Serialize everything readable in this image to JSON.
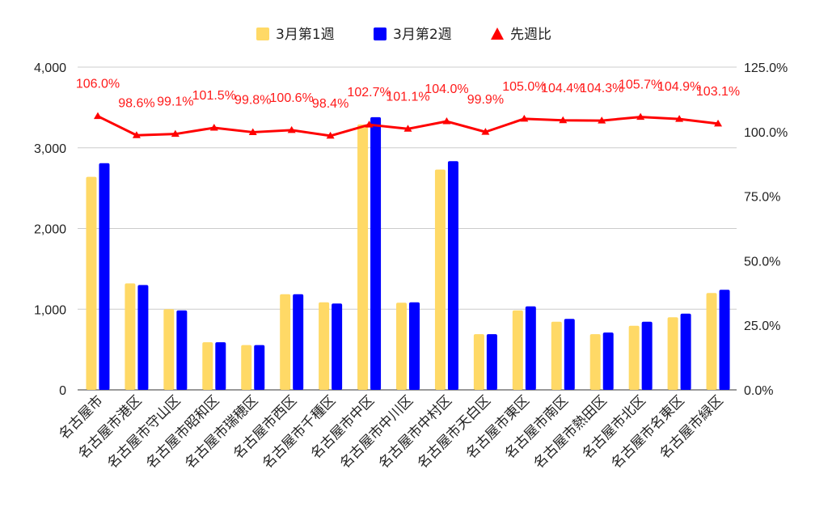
{
  "chart_data": {
    "type": "bar",
    "categories": [
      "名古屋市",
      "名古屋市港区",
      "名古屋市守山区",
      "名古屋市昭和区",
      "名古屋市瑞穂区",
      "名古屋市西区",
      "名古屋市千種区",
      "名古屋市中区",
      "名古屋市中川区",
      "名古屋市中村区",
      "名古屋市天白区",
      "名古屋市東区",
      "名古屋市南区",
      "名古屋市熱田区",
      "名古屋市北区",
      "名古屋市名東区",
      "名古屋市緑区"
    ],
    "series": [
      {
        "name": "3月第1週",
        "kind": "bar",
        "axis": "left",
        "color": "#ffd966",
        "values": [
          2640,
          1320,
          1000,
          590,
          555,
          1185,
          1085,
          3290,
          1080,
          2730,
          690,
          985,
          845,
          690,
          795,
          900,
          1200
        ]
      },
      {
        "name": "3月第2週",
        "kind": "bar",
        "axis": "left",
        "color": "#0000ff",
        "values": [
          2810,
          1300,
          985,
          590,
          555,
          1185,
          1070,
          3380,
          1085,
          2835,
          690,
          1035,
          880,
          710,
          845,
          945,
          1240
        ]
      },
      {
        "name": "先週比",
        "kind": "line",
        "axis": "right",
        "color": "#ff0000",
        "marker": "triangle",
        "values": [
          106.0,
          98.6,
          99.1,
          101.5,
          99.8,
          100.6,
          98.4,
          102.7,
          101.1,
          104.0,
          99.9,
          105.0,
          104.4,
          104.3,
          105.7,
          104.9,
          103.1
        ],
        "labels": [
          "106.0%",
          "98.6%",
          "99.1%",
          "101.5%",
          "99.8%",
          "100.6%",
          "98.4%",
          "102.7%",
          "101.1%",
          "104.0%",
          "99.9%",
          "105.0%",
          "104.4%",
          "104.3%",
          "105.7%",
          "104.9%",
          "103.1%"
        ]
      }
    ],
    "left_axis": {
      "min": 0,
      "max": 4000,
      "ticks": [
        0,
        1000,
        2000,
        3000,
        4000
      ],
      "tick_labels": [
        "0",
        "1,000",
        "2,000",
        "3,000",
        "4,000"
      ]
    },
    "right_axis": {
      "min": 0,
      "max": 125,
      "ticks": [
        0,
        25,
        50,
        75,
        100,
        125
      ],
      "tick_labels": [
        "0.0%",
        "25.0%",
        "50.0%",
        "75.0%",
        "100.0%",
        "125.0%"
      ]
    },
    "grid": true,
    "legend_position": "top-center"
  }
}
